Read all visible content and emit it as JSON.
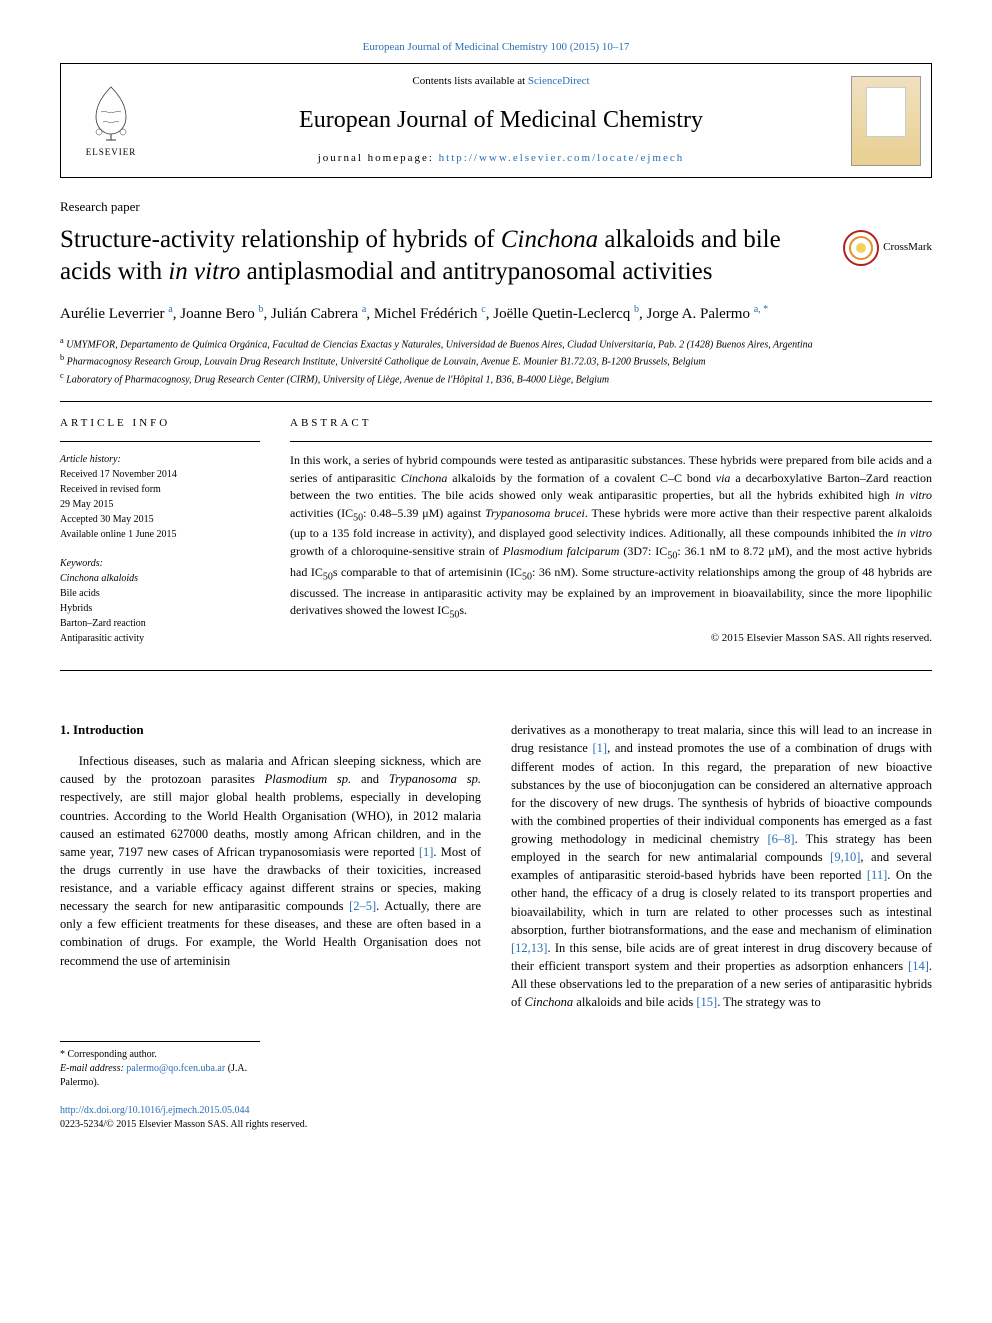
{
  "header": {
    "citation_link": "European Journal of Medicinal Chemistry 100 (2015) 10–17",
    "contents_text": "Contents lists available at ",
    "contents_link": "ScienceDirect",
    "journal_name": "European Journal of Medicinal Chemistry",
    "homepage_label": "journal homepage: ",
    "homepage_url": "http://www.elsevier.com/locate/ejmech",
    "publisher": "ELSEVIER"
  },
  "article": {
    "type_label": "Research paper",
    "title_html": "Structure-activity relationship of hybrids of <em>Cinchona</em> alkaloids and bile acids with <em>in vitro</em> antiplasmodial and antitrypanosomal activities",
    "crossmark": "CrossMark",
    "authors_html": "Aurélie Leverrier <sup>a</sup>, Joanne Bero <sup>b</sup>, Julián Cabrera <sup>a</sup>, Michel Frédérich <sup>c</sup>, Joëlle Quetin-Leclercq <sup>b</sup>, Jorge A. Palermo <sup>a, *</sup>",
    "affiliations": [
      {
        "sup": "a",
        "text": "UMYMFOR, Departamento de Química Orgánica, Facultad de Ciencias Exactas y Naturales, Universidad de Buenos Aires, Ciudad Universitaria, Pab. 2 (1428) Buenos Aires, Argentina"
      },
      {
        "sup": "b",
        "text": "Pharmacognosy Research Group, Louvain Drug Research Institute, Université Catholique de Louvain, Avenue E. Mounier B1.72.03, B-1200 Brussels, Belgium"
      },
      {
        "sup": "c",
        "text": "Laboratory of Pharmacognosy, Drug Research Center (CIRM), University of Liège, Avenue de l'Hôpital 1, B36, B-4000 Liège, Belgium"
      }
    ]
  },
  "info": {
    "heading": "article info",
    "history_label": "Article history:",
    "history": [
      "Received 17 November 2014",
      "Received in revised form",
      "29 May 2015",
      "Accepted 30 May 2015",
      "Available online 1 June 2015"
    ],
    "keywords_label": "Keywords:",
    "keywords": [
      "Cinchona alkaloids",
      "Bile acids",
      "Hybrids",
      "Barton–Zard reaction",
      "Antiparasitic activity"
    ]
  },
  "abstract": {
    "heading": "abstract",
    "text_html": "In this work, a series of hybrid compounds were tested as antiparasitic substances. These hybrids were prepared from bile acids and a series of antiparasitic <em>Cinchona</em> alkaloids by the formation of a covalent C–C bond <em>via</em> a decarboxylative Barton–Zard reaction between the two entities. The bile acids showed only weak antiparasitic properties, but all the hybrids exhibited high <em>in vitro</em> activities (IC<sub>50</sub>: 0.48–5.39 μM) against <em>Trypanosoma brucei</em>. These hybrids were more active than their respective parent alkaloids (up to a 135 fold increase in activity), and displayed good selectivity indices. Aditionally, all these compounds inhibited the <em>in vitro</em> growth of a chloroquine-sensitive strain of <em>Plasmodium falciparum</em> (3D7: IC<sub>50</sub>: 36.1 nM to 8.72 μM), and the most active hybrids had IC<sub>50</sub>s comparable to that of artemisinin (IC<sub>50</sub>: 36 nM). Some structure-activity relationships among the group of 48 hybrids are discussed. The increase in antiparasitic activity may be explained by an improvement in bioavailability, since the more lipophilic derivatives showed the lowest IC<sub>50</sub>s.",
    "copyright": "© 2015 Elsevier Masson SAS. All rights reserved."
  },
  "body": {
    "section_number": "1.",
    "section_title": "Introduction",
    "col1_html": "Infectious diseases, such as malaria and African sleeping sickness, which are caused by the protozoan parasites <em>Plasmodium sp.</em> and <em>Trypanosoma sp.</em> respectively, are still major global health problems, especially in developing countries. According to the World Health Organisation (WHO), in 2012 malaria caused an estimated 627000 deaths, mostly among African children, and in the same year, 7197 new cases of African trypanosomiasis were reported <a>[1]</a>. Most of the drugs currently in use have the drawbacks of their toxicities, increased resistance, and a variable efficacy against different strains or species, making necessary the search for new antiparasitic compounds <a>[2–5]</a>. Actually, there are only a few efficient treatments for these diseases, and these are often based in a combination of drugs. For example, the World Health Organisation does not recommend the use of arteminisin",
    "col2_html": "derivatives as a monotherapy to treat malaria, since this will lead to an increase in drug resistance <a>[1]</a>, and instead promotes the use of a combination of drugs with different modes of action. In this regard, the preparation of new bioactive substances by the use of bioconjugation can be considered an alternative approach for the discovery of new drugs. The synthesis of hybrids of bioactive compounds with the combined properties of their individual components has emerged as a fast growing methodology in medicinal chemistry <a>[6–8]</a>. This strategy has been employed in the search for new antimalarial compounds <a>[9,10]</a>, and several examples of antiparasitic steroid-based hybrids have been reported <a>[11]</a>. On the other hand, the efficacy of a drug is closely related to its transport properties and bioavailability, which in turn are related to other processes such as intestinal absorption, further biotransformations, and the ease and mechanism of elimination <a>[12,13]</a>. In this sense, bile acids are of great interest in drug discovery because of their efficient transport system and their properties as adsorption enhancers <a>[14]</a>. All these observations led to the preparation of a new series of antiparasitic hybrids of <em>Cinchona</em> alkaloids and bile acids <a>[15]</a>. The strategy was to"
  },
  "footer": {
    "corresponding": "* Corresponding author.",
    "email_label": "E-mail address: ",
    "email": "palermo@qo.fcen.uba.ar",
    "email_suffix": " (J.A. Palermo).",
    "doi": "http://dx.doi.org/10.1016/j.ejmech.2015.05.044",
    "issn_line": "0223-5234/© 2015 Elsevier Masson SAS. All rights reserved."
  },
  "colors": {
    "link": "#2a6fb5",
    "text": "#000000",
    "rule": "#000000"
  }
}
